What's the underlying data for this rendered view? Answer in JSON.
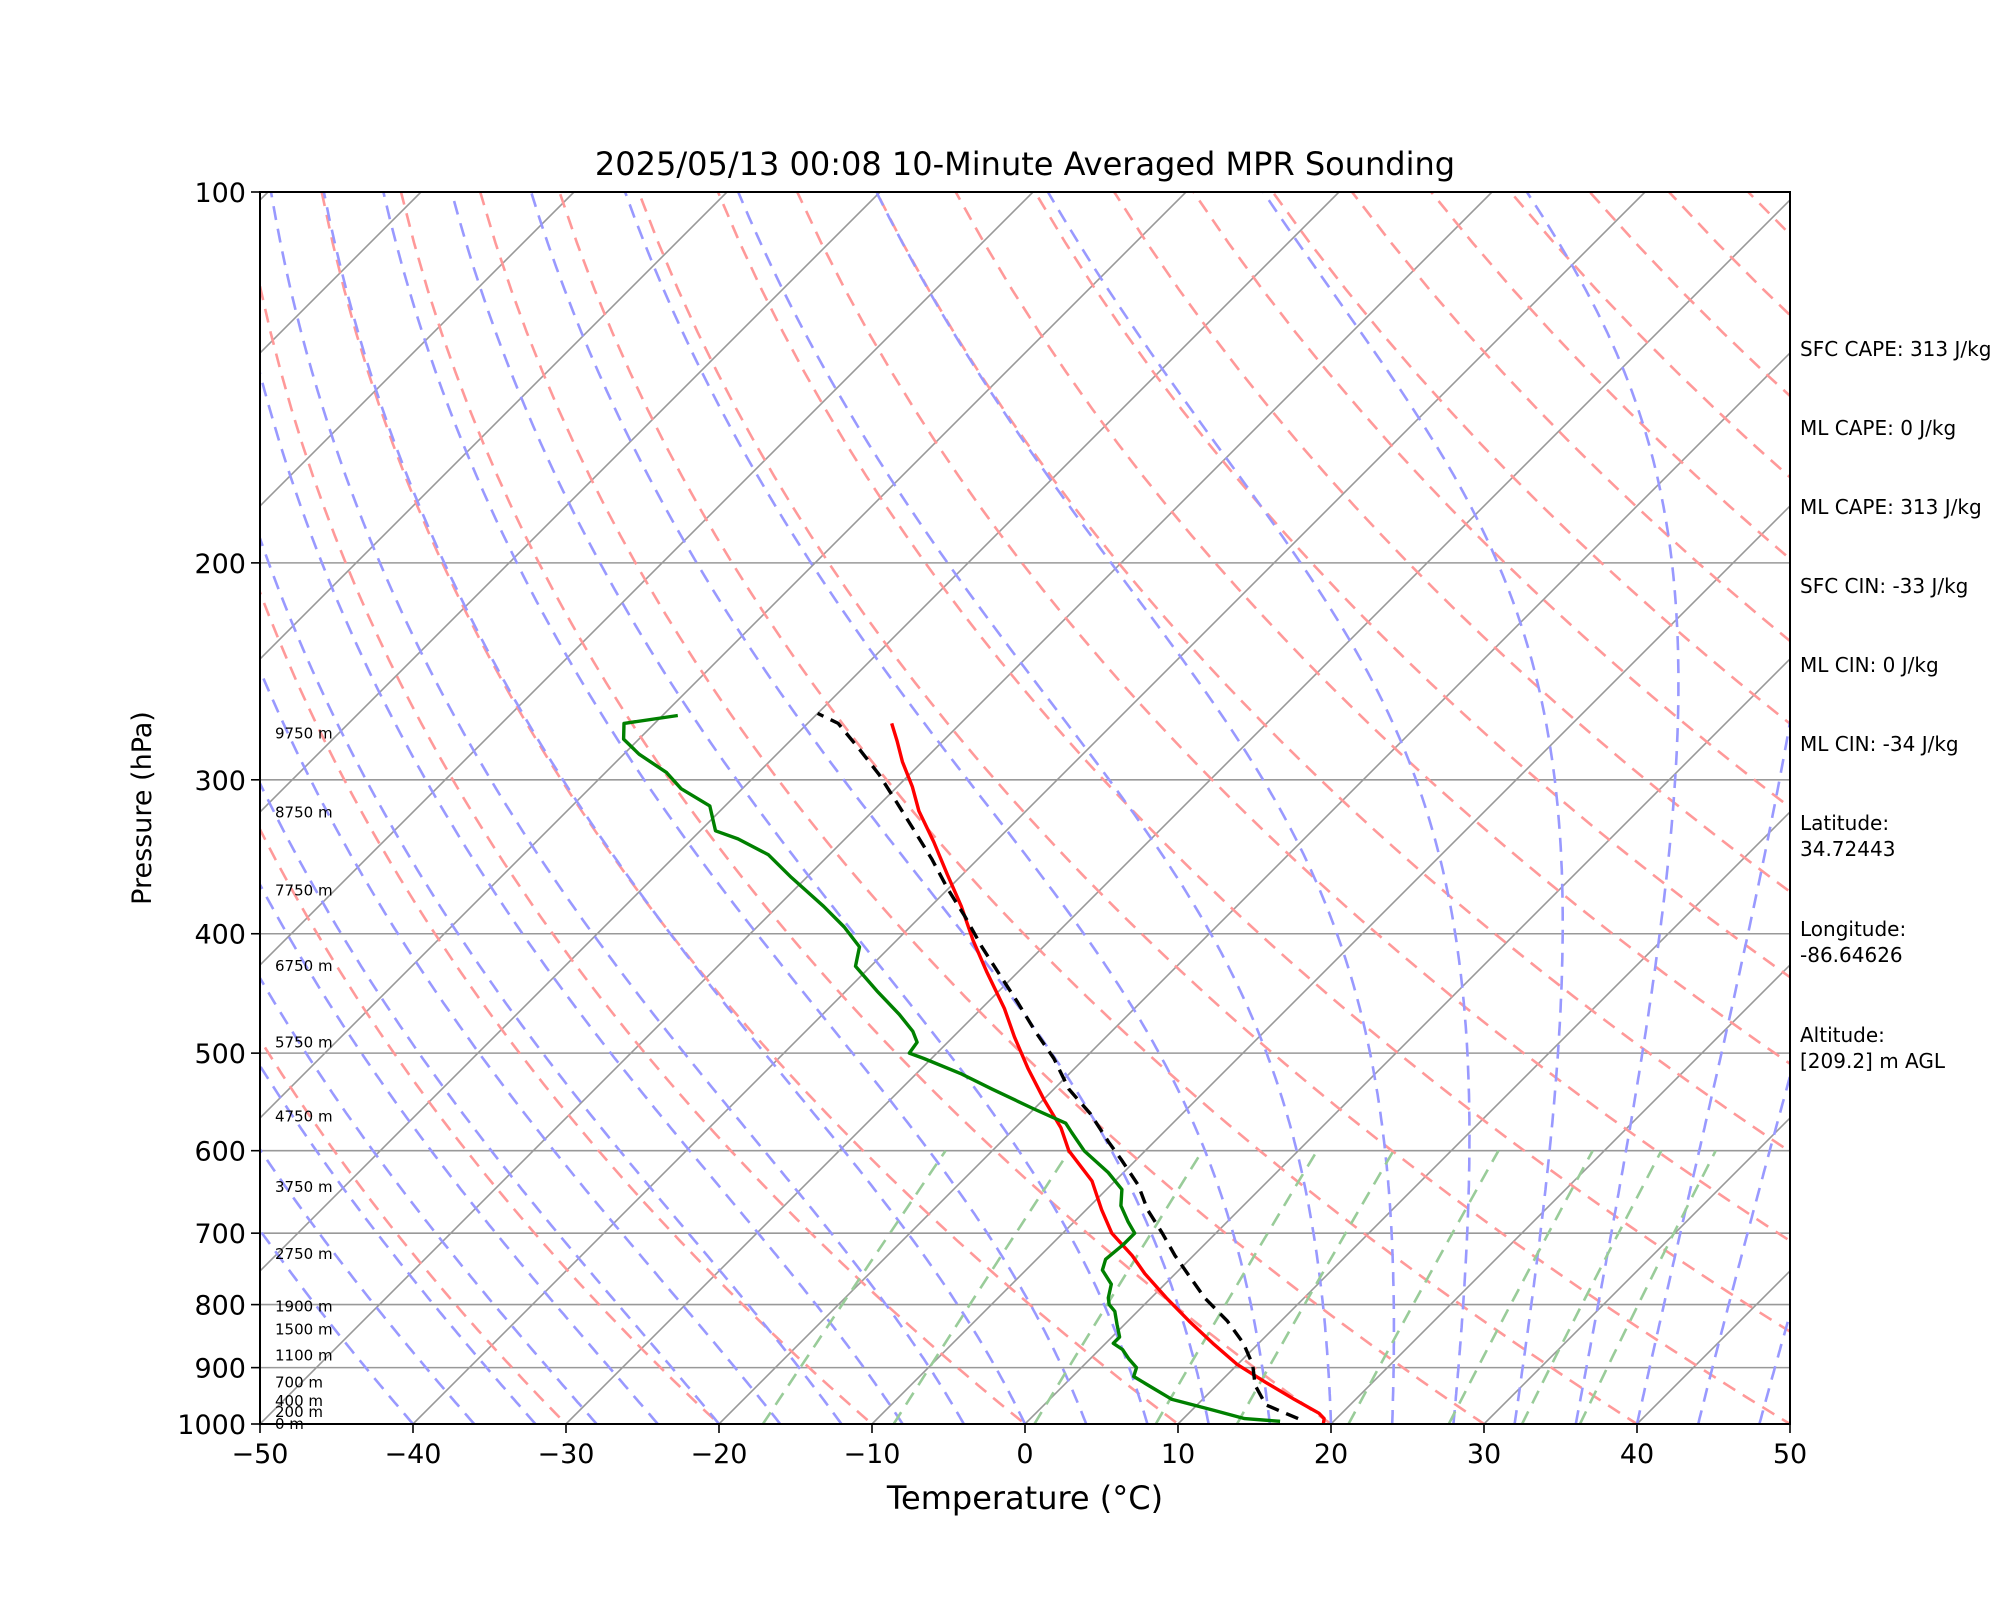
{
  "chart_data": {
    "type": "line",
    "title": "2025/05/13 00:08 10-Minute Averaged MPR Sounding",
    "xlabel": "Temperature (°C)",
    "ylabel": "Pressure (hPa)",
    "xlim": [
      -50,
      50
    ],
    "ylim": [
      1000,
      100
    ],
    "y_scale": "log",
    "skew": true,
    "grid": true,
    "x_ticks": [
      "−50",
      "−40",
      "−30",
      "−20",
      "−10",
      "0",
      "10",
      "20",
      "30",
      "40",
      "50"
    ],
    "y_ticks": [
      "1000",
      "900",
      "800",
      "700",
      "600",
      "500",
      "400",
      "300",
      "200",
      "100"
    ],
    "height_labels": [
      {
        "text": "0 m",
        "p": 1000
      },
      {
        "text": "200 m",
        "p": 978
      },
      {
        "text": "400 m",
        "p": 958
      },
      {
        "text": "700 m",
        "p": 925
      },
      {
        "text": "1100 m",
        "p": 880
      },
      {
        "text": "1500 m",
        "p": 838
      },
      {
        "text": "1900 m",
        "p": 803
      },
      {
        "text": "2750 m",
        "p": 728
      },
      {
        "text": "3750 m",
        "p": 642
      },
      {
        "text": "4750 m",
        "p": 563
      },
      {
        "text": "5750 m",
        "p": 490
      },
      {
        "text": "6750 m",
        "p": 425
      },
      {
        "text": "7750 m",
        "p": 369
      },
      {
        "text": "8750 m",
        "p": 319
      },
      {
        "text": "9750 m",
        "p": 275
      }
    ],
    "series": [
      {
        "color": "#ff0000",
        "style": "solid",
        "points": [
          [
            19.5,
            1000
          ],
          [
            19.2,
            990
          ],
          [
            18.5,
            980
          ],
          [
            16,
            955
          ],
          [
            13,
            925
          ],
          [
            10,
            895
          ],
          [
            7,
            860
          ],
          [
            4,
            825
          ],
          [
            1,
            790
          ],
          [
            -2,
            755
          ],
          [
            -4,
            730
          ],
          [
            -6.8,
            700
          ],
          [
            -9,
            670
          ],
          [
            -11.5,
            635
          ],
          [
            -15,
            600
          ],
          [
            -17,
            575
          ],
          [
            -20,
            545
          ],
          [
            -23,
            515
          ],
          [
            -26,
            485
          ],
          [
            -28.5,
            460
          ],
          [
            -32,
            430
          ],
          [
            -35,
            405
          ],
          [
            -38,
            380
          ],
          [
            -41,
            358
          ],
          [
            -44,
            337
          ],
          [
            -47,
            318
          ],
          [
            -49,
            304
          ],
          [
            -51.3,
            290
          ],
          [
            -53,
            279
          ],
          [
            -54.5,
            270
          ]
        ]
      },
      {
        "color": "#008000",
        "style": "solid",
        "points": [
          [
            16.5,
            995
          ],
          [
            14,
            990
          ],
          [
            11.5,
            975
          ],
          [
            8,
            955
          ],
          [
            6,
            935
          ],
          [
            4,
            915
          ],
          [
            3.6,
            900
          ],
          [
            2.5,
            885
          ],
          [
            1.5,
            870
          ],
          [
            0.5,
            860
          ],
          [
            0.5,
            850
          ],
          [
            0,
            840
          ],
          [
            -0.5,
            830
          ],
          [
            -1,
            820
          ],
          [
            -1.5,
            810
          ],
          [
            -2.3,
            800
          ],
          [
            -2.8,
            790
          ],
          [
            -3.5,
            770
          ],
          [
            -5,
            750
          ],
          [
            -5.5,
            735
          ],
          [
            -5.3,
            715
          ],
          [
            -5.3,
            700
          ],
          [
            -6.5,
            685
          ],
          [
            -8,
            665
          ],
          [
            -9,
            645
          ],
          [
            -11,
            625
          ],
          [
            -14,
            600
          ],
          [
            -16,
            580
          ],
          [
            -17,
            570
          ],
          [
            -20,
            555
          ],
          [
            -24,
            535
          ],
          [
            -27,
            520
          ],
          [
            -30.5,
            505
          ],
          [
            -31.8,
            500
          ],
          [
            -32,
            490
          ],
          [
            -33,
            480
          ],
          [
            -35,
            465
          ],
          [
            -38,
            445
          ],
          [
            -41,
            425
          ],
          [
            -42,
            410
          ],
          [
            -44.3,
            395
          ],
          [
            -47,
            380
          ],
          [
            -51,
            360
          ],
          [
            -54,
            345
          ],
          [
            -57,
            335
          ],
          [
            -59,
            330
          ],
          [
            -61,
            315
          ],
          [
            -64,
            305
          ],
          [
            -66,
            296
          ],
          [
            -69,
            286
          ],
          [
            -71,
            278
          ],
          [
            -72,
            270
          ],
          [
            -69,
            266
          ]
        ]
      },
      {
        "color": "#000000",
        "style": "dashed",
        "points": [
          [
            17.5,
            990
          ],
          [
            14.5,
            965
          ],
          [
            12.5,
            930
          ],
          [
            11,
            895
          ],
          [
            9,
            860
          ],
          [
            6.5,
            825
          ],
          [
            3.5,
            790
          ],
          [
            0.8,
            755
          ],
          [
            -1.2,
            730
          ],
          [
            -3.5,
            700
          ],
          [
            -6,
            670
          ],
          [
            -8.2,
            640
          ],
          [
            -11,
            610
          ],
          [
            -13,
            590
          ],
          [
            -16,
            560
          ],
          [
            -19,
            535
          ],
          [
            -22,
            505
          ],
          [
            -25,
            480
          ],
          [
            -28,
            455
          ],
          [
            -31,
            432
          ],
          [
            -34,
            410
          ],
          [
            -37,
            388
          ],
          [
            -40,
            368
          ],
          [
            -43,
            348
          ],
          [
            -46,
            330
          ],
          [
            -49,
            313
          ],
          [
            -52,
            297
          ],
          [
            -55,
            283
          ],
          [
            -58,
            270
          ],
          [
            -60,
            265
          ]
        ]
      }
    ]
  },
  "stats": {
    "sfc_cape": "SFC CAPE: 313 J/kg",
    "ml_cape": "ML CAPE: 0 J/kg",
    "ml_cape2": "ML CAPE: 313 J/kg",
    "sfc_cin": "SFC CIN: -33 J/kg",
    "ml_cin": "ML CIN: 0 J/kg",
    "ml_cin2": "ML CIN: -34 J/kg",
    "latitude": "Latitude:\n34.72443",
    "longitude": "Longitude:\n-86.64626",
    "altitude": "Altitude:\n[209.2] m AGL"
  },
  "colors": {
    "dry_adiabat": "#ff9999",
    "moist_adiabat": "#9999ff",
    "mixing_ratio": "#99cc99",
    "isotherm": "#999999",
    "isobar": "#999999"
  }
}
